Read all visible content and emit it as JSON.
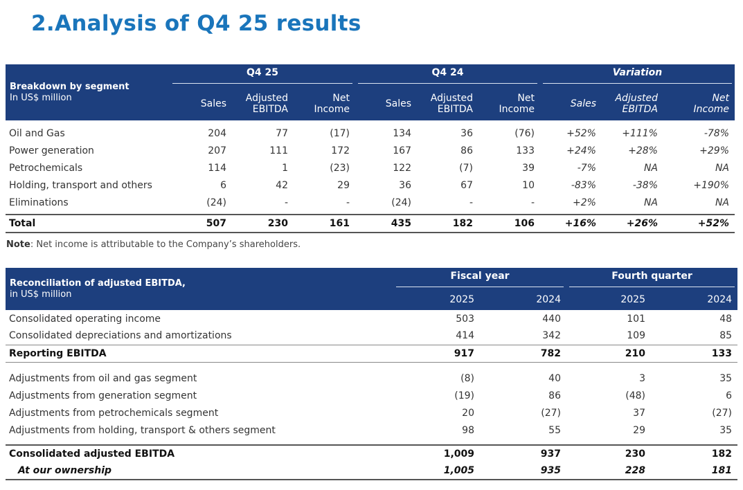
{
  "title": {
    "number": "2.",
    "text": "Analysis of Q4 25 results"
  },
  "segment": {
    "header": {
      "label_line1": "Breakdown by segment",
      "label_line2": "In US$ million",
      "group_q4_25": "Q4 25",
      "group_q4_24": "Q4 24",
      "group_variation": "Variation",
      "sales": "Sales",
      "adj1": "Adjusted",
      "adj2": "EBITDA",
      "net1": "Net",
      "net2": "Income"
    },
    "rows": [
      {
        "label": "Oil and Gas",
        "v": [
          "204",
          "77",
          "(17)",
          "134",
          "36",
          "(76)",
          "+52%",
          "+111%",
          "-78%"
        ]
      },
      {
        "label": "Power generation",
        "v": [
          "207",
          "111",
          "172",
          "167",
          "86",
          "133",
          "+24%",
          "+28%",
          "+29%"
        ]
      },
      {
        "label": "Petrochemicals",
        "v": [
          "114",
          "1",
          "(23)",
          "122",
          "(7)",
          "39",
          "-7%",
          "NA",
          "NA"
        ]
      },
      {
        "label": "Holding, transport and others",
        "v": [
          "6",
          "42",
          "29",
          "36",
          "67",
          "10",
          "-83%",
          "-38%",
          "+190%"
        ]
      },
      {
        "label": "Eliminations",
        "v": [
          "(24)",
          "-",
          "-",
          "(24)",
          "-",
          "-",
          "+2%",
          "NA",
          "NA"
        ]
      }
    ],
    "total": {
      "label": "Total",
      "v": [
        "507",
        "230",
        "161",
        "435",
        "182",
        "106",
        "+16%",
        "+26%",
        "+52%"
      ]
    }
  },
  "note": {
    "label": "Note",
    "text": ": Net income is attributable to the Company’s shareholders."
  },
  "recon": {
    "header": {
      "label_line1": "Reconciliation of adjusted EBITDA,",
      "label_line2": "in US$ million",
      "group_fiscal": "Fiscal year",
      "group_quarter": "Fourth quarter",
      "y2025": "2025",
      "y2024": "2024"
    },
    "rows_a": [
      {
        "label": "Consolidated operating income",
        "v": [
          "503",
          "440",
          "101",
          "48"
        ]
      },
      {
        "label": "Consolidated depreciations and amortizations",
        "v": [
          "414",
          "342",
          "109",
          "85"
        ]
      }
    ],
    "reporting": {
      "label": "Reporting EBITDA",
      "v": [
        "917",
        "782",
        "210",
        "133"
      ]
    },
    "rows_b": [
      {
        "label": "Adjustments from oil and gas segment",
        "v": [
          "(8)",
          "40",
          "3",
          "35"
        ]
      },
      {
        "label": "Adjustments from generation segment",
        "v": [
          "(19)",
          "86",
          "(48)",
          "6"
        ]
      },
      {
        "label": "Adjustments from petrochemicals segment",
        "v": [
          "20",
          "(27)",
          "37",
          "(27)"
        ]
      },
      {
        "label": "Adjustments from holding, transport & others segment",
        "v": [
          "98",
          "55",
          "29",
          "35"
        ]
      }
    ],
    "consolidated": {
      "label": "Consolidated adjusted EBITDA",
      "v": [
        "1,009",
        "937",
        "230",
        "182"
      ]
    },
    "ownership": {
      "label": "At our ownership",
      "v": [
        "1,005",
        "935",
        "228",
        "181"
      ]
    }
  }
}
